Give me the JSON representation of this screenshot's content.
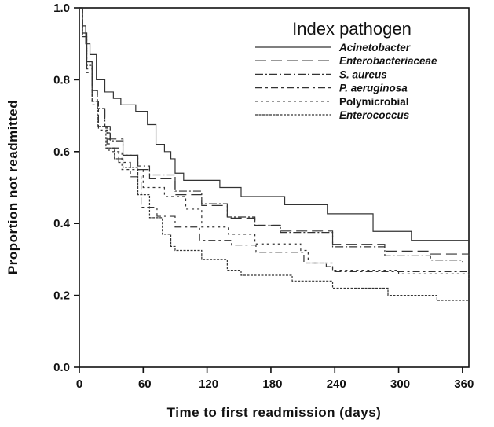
{
  "chart_data": {
    "type": "line",
    "subtype": "kaplan-meier step",
    "title": "",
    "xlabel": "Time to first readmission (days)",
    "ylabel": "Proportion not readmitted",
    "xlim": [
      0,
      366
    ],
    "ylim": [
      0,
      1.0
    ],
    "xticks": [
      0,
      60,
      120,
      180,
      240,
      300,
      360
    ],
    "xtick_labels": [
      "0",
      "60",
      "120",
      "180",
      "240",
      "300",
      "360"
    ],
    "yticks": [
      0,
      0.2,
      0.4,
      0.6,
      0.8,
      1.0
    ],
    "ytick_labels": [
      "0.0",
      "0.2",
      "0.4",
      "0.6",
      "0.8",
      "1.0"
    ],
    "grid": false,
    "legend": {
      "title": "Index pathogen",
      "placement": "top-right"
    },
    "line_color": "#333333",
    "series": [
      {
        "name": "Acinetobacter",
        "italic": true,
        "style": "solid",
        "points": [
          [
            0,
            1
          ],
          [
            3,
            0.95
          ],
          [
            6,
            0.9
          ],
          [
            10,
            0.87
          ],
          [
            16,
            0.8
          ],
          [
            24,
            0.766
          ],
          [
            32,
            0.748
          ],
          [
            39,
            0.73
          ],
          [
            53,
            0.712
          ],
          [
            64,
            0.675
          ],
          [
            72,
            0.62
          ],
          [
            80,
            0.6
          ],
          [
            86,
            0.58
          ],
          [
            90,
            0.54
          ],
          [
            98,
            0.52
          ],
          [
            132,
            0.5
          ],
          [
            152,
            0.475
          ],
          [
            193,
            0.452
          ],
          [
            233,
            0.427
          ],
          [
            276,
            0.378
          ],
          [
            312,
            0.353
          ],
          [
            366,
            0.353
          ]
        ]
      },
      {
        "name": "Enterobacteriaceae",
        "italic": true,
        "style": "long-dash",
        "points": [
          [
            0,
            1
          ],
          [
            3,
            0.93
          ],
          [
            7,
            0.85
          ],
          [
            12,
            0.77
          ],
          [
            17,
            0.72
          ],
          [
            24,
            0.67
          ],
          [
            29,
            0.635
          ],
          [
            41,
            0.59
          ],
          [
            55,
            0.55
          ],
          [
            66,
            0.526
          ],
          [
            90,
            0.48
          ],
          [
            115,
            0.45
          ],
          [
            139,
            0.415
          ],
          [
            165,
            0.395
          ],
          [
            189,
            0.379
          ],
          [
            238,
            0.342
          ],
          [
            287,
            0.323
          ],
          [
            330,
            0.315
          ],
          [
            366,
            0.31
          ]
        ]
      },
      {
        "name": "S. aureus",
        "italic": true,
        "style": "dash-dot",
        "points": [
          [
            0,
            1
          ],
          [
            3,
            0.93
          ],
          [
            7,
            0.85
          ],
          [
            12,
            0.77
          ],
          [
            17,
            0.72
          ],
          [
            24,
            0.67
          ],
          [
            29,
            0.63
          ],
          [
            41,
            0.59
          ],
          [
            55,
            0.56
          ],
          [
            66,
            0.535
          ],
          [
            90,
            0.49
          ],
          [
            115,
            0.455
          ],
          [
            139,
            0.418
          ],
          [
            165,
            0.395
          ],
          [
            189,
            0.375
          ],
          [
            238,
            0.335
          ],
          [
            287,
            0.31
          ],
          [
            330,
            0.298
          ],
          [
            360,
            0.293
          ]
        ]
      },
      {
        "name": "P. aeruginosa",
        "italic": true,
        "style": "long-short-dash",
        "points": [
          [
            0,
            1
          ],
          [
            3,
            0.92
          ],
          [
            7,
            0.83
          ],
          [
            12,
            0.74
          ],
          [
            18,
            0.67
          ],
          [
            26,
            0.61
          ],
          [
            37,
            0.57
          ],
          [
            48,
            0.53
          ],
          [
            58,
            0.445
          ],
          [
            73,
            0.42
          ],
          [
            90,
            0.39
          ],
          [
            113,
            0.353
          ],
          [
            143,
            0.34
          ],
          [
            166,
            0.32
          ],
          [
            211,
            0.29
          ],
          [
            232,
            0.28
          ],
          [
            238,
            0.266
          ],
          [
            366,
            0.266
          ]
        ]
      },
      {
        "name": "Polymicrobial",
        "italic": false,
        "style": "short-dash",
        "points": [
          [
            0,
            1
          ],
          [
            3,
            0.92
          ],
          [
            7,
            0.82
          ],
          [
            12,
            0.73
          ],
          [
            18,
            0.66
          ],
          [
            28,
            0.6
          ],
          [
            40,
            0.55
          ],
          [
            60,
            0.5
          ],
          [
            80,
            0.475
          ],
          [
            100,
            0.44
          ],
          [
            115,
            0.39
          ],
          [
            140,
            0.37
          ],
          [
            165,
            0.343
          ],
          [
            208,
            0.325
          ],
          [
            215,
            0.29
          ],
          [
            238,
            0.27
          ],
          [
            300,
            0.26
          ],
          [
            366,
            0.245
          ]
        ]
      },
      {
        "name": "Enterococcus",
        "italic": true,
        "style": "dotted-dash",
        "points": [
          [
            0,
            1
          ],
          [
            3,
            0.92
          ],
          [
            7,
            0.84
          ],
          [
            12,
            0.74
          ],
          [
            17,
            0.67
          ],
          [
            25,
            0.61
          ],
          [
            33,
            0.58
          ],
          [
            41,
            0.556
          ],
          [
            55,
            0.48
          ],
          [
            66,
            0.416
          ],
          [
            78,
            0.37
          ],
          [
            86,
            0.336
          ],
          [
            90,
            0.325
          ],
          [
            115,
            0.3
          ],
          [
            139,
            0.27
          ],
          [
            152,
            0.256
          ],
          [
            200,
            0.24
          ],
          [
            238,
            0.22
          ],
          [
            290,
            0.2
          ],
          [
            336,
            0.186
          ],
          [
            366,
            0.186
          ]
        ]
      }
    ]
  }
}
